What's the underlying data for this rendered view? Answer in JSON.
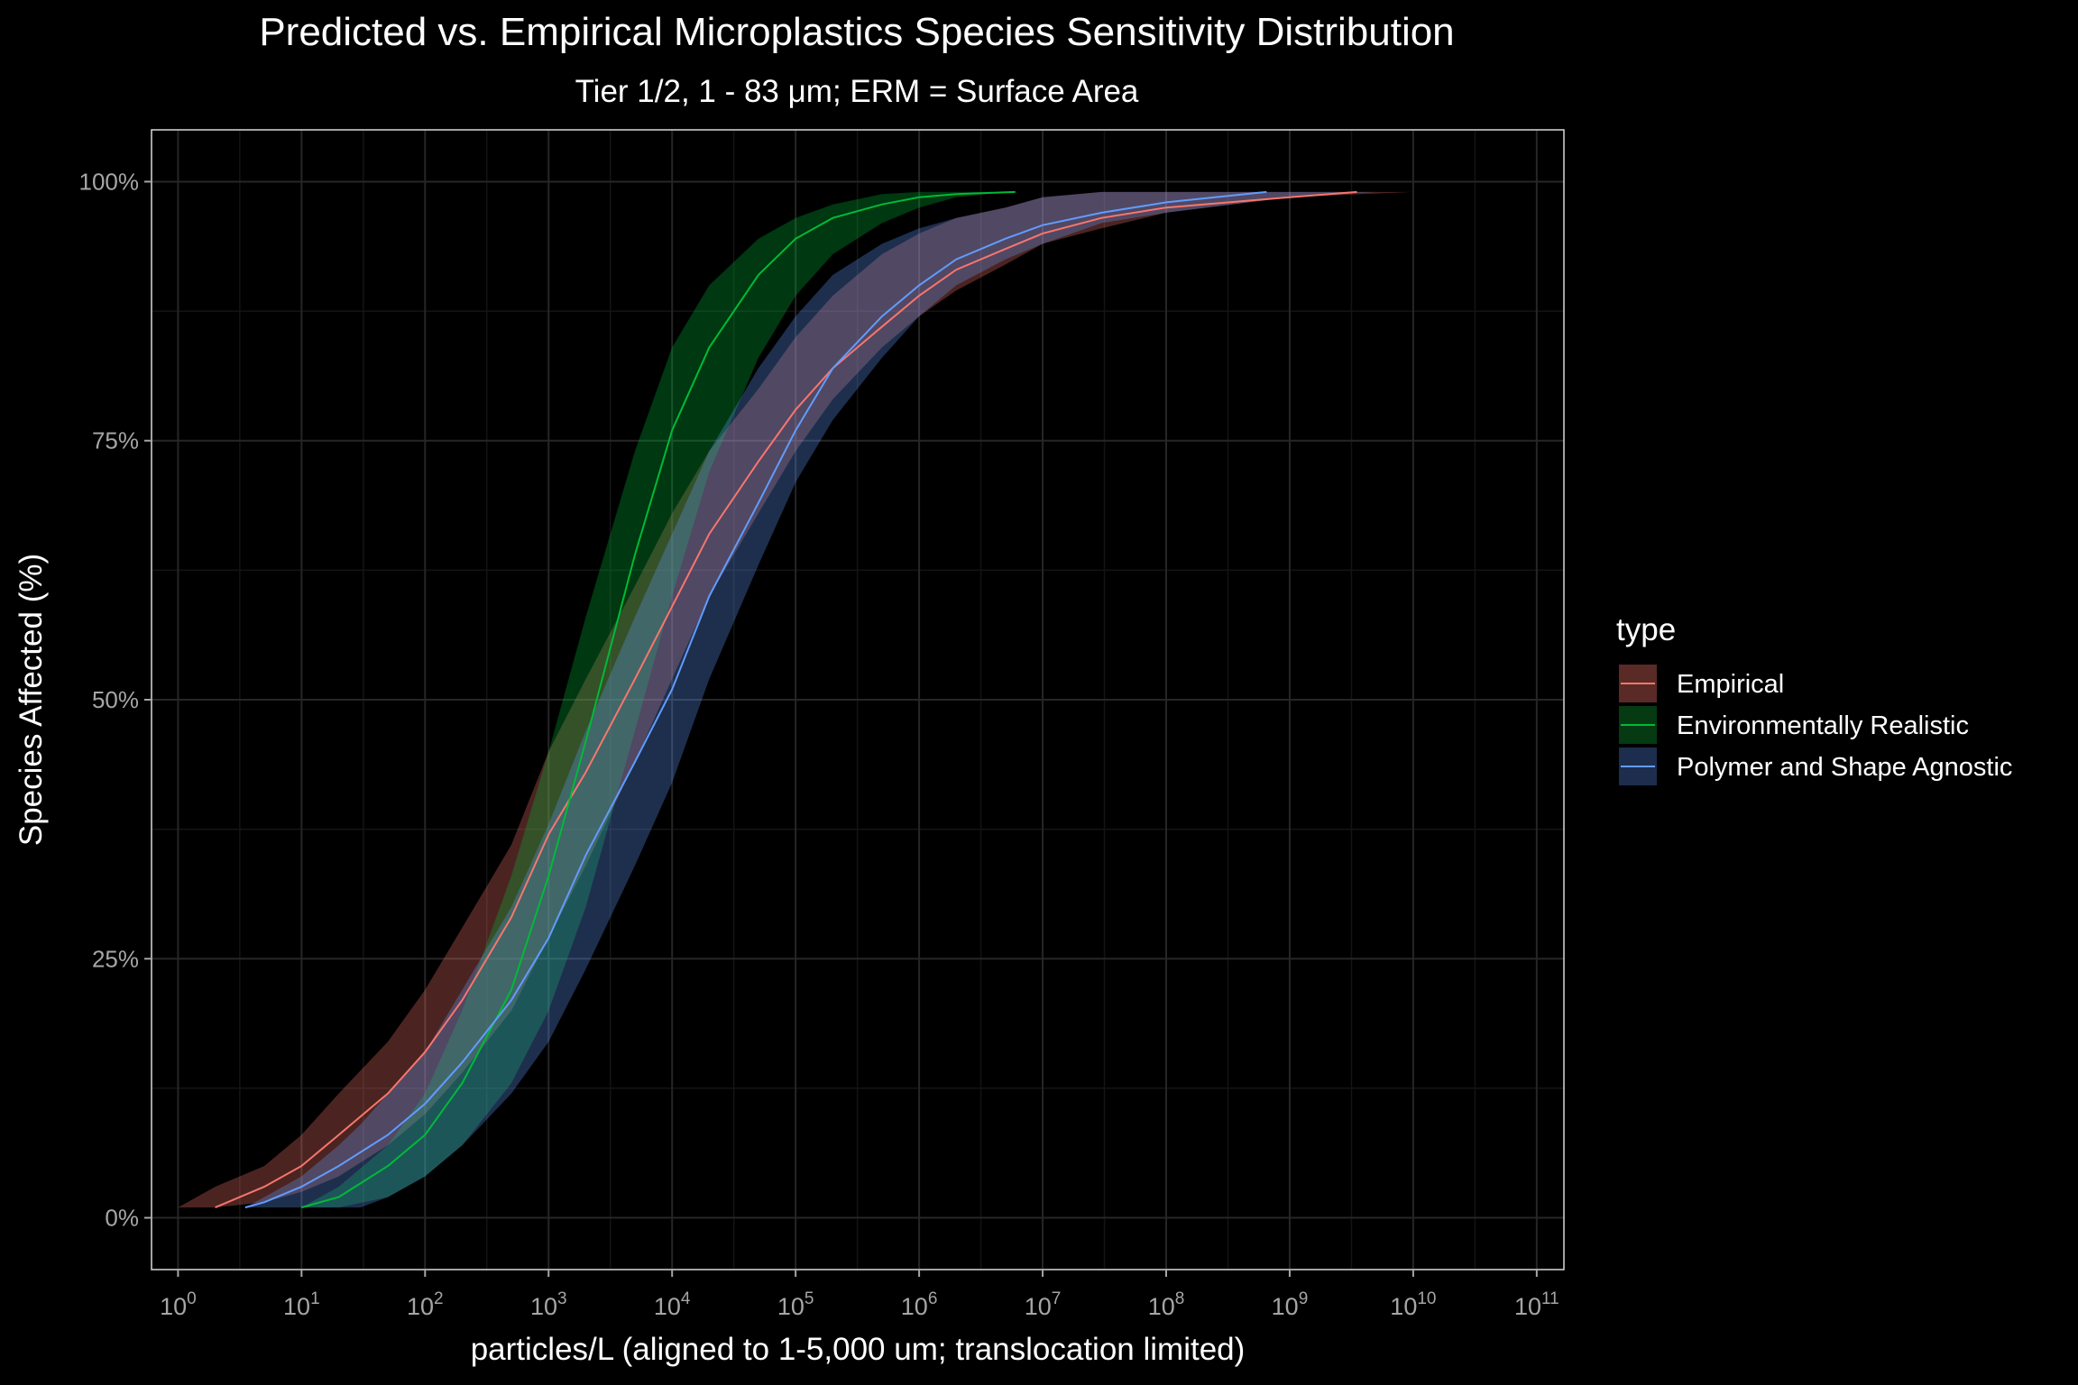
{
  "chart_data": {
    "type": "area",
    "title": "Predicted vs. Empirical Microplastics Species Sensitivity Distribution",
    "subtitle": "Tier 1/2, 1 - 83 μm; ERM = Surface Area",
    "xlabel": "particles/L (aligned to 1-5,000 um; translocation limited)",
    "ylabel": "Species Affected (%)",
    "x_scale": "log10",
    "xlim": [
      0.61,
      166000000000
    ],
    "ylim": [
      -0.05,
      1.05
    ],
    "x_ticks": [
      {
        "base": "10",
        "exp": "0"
      },
      {
        "base": "10",
        "exp": "1"
      },
      {
        "base": "10",
        "exp": "2"
      },
      {
        "base": "10",
        "exp": "3"
      },
      {
        "base": "10",
        "exp": "4"
      },
      {
        "base": "10",
        "exp": "5"
      },
      {
        "base": "10",
        "exp": "6"
      },
      {
        "base": "10",
        "exp": "7"
      },
      {
        "base": "10",
        "exp": "8"
      },
      {
        "base": "10",
        "exp": "9"
      },
      {
        "base": "10",
        "exp": "10"
      },
      {
        "base": "10",
        "exp": "11"
      }
    ],
    "y_ticks": [
      "0%",
      "25%",
      "50%",
      "75%",
      "100%"
    ],
    "grid": true,
    "legend": {
      "title": "type",
      "placement": "right"
    },
    "series": [
      {
        "name": "Empirical",
        "color": "#F8766D",
        "fill": "#5a2a27",
        "x": [
          2,
          5,
          10,
          20,
          50,
          100,
          200,
          500,
          1000,
          2000,
          5000,
          10000,
          20000,
          50000,
          100000,
          200000,
          500000,
          1000000,
          2000000,
          5000000,
          10000000,
          30000000,
          100000000,
          1000000000,
          3500000000
        ],
        "y": [
          0.01,
          0.03,
          0.05,
          0.08,
          0.12,
          0.16,
          0.21,
          0.29,
          0.37,
          0.43,
          0.52,
          0.59,
          0.66,
          0.73,
          0.78,
          0.82,
          0.86,
          0.89,
          0.915,
          0.935,
          0.95,
          0.965,
          0.975,
          0.985,
          0.99
        ],
        "x_band": [
          1,
          2,
          5,
          10,
          20,
          50,
          100,
          200,
          500,
          1000,
          2000,
          5000,
          10000,
          20000,
          50000,
          100000,
          200000,
          500000,
          1000000,
          2000000,
          5000000,
          10000000,
          30000000,
          100000000,
          1000000000,
          10000000000,
          90000000000
        ],
        "lower": [
          0.01,
          0.01,
          0.015,
          0.025,
          0.04,
          0.07,
          0.1,
          0.14,
          0.2,
          0.27,
          0.34,
          0.44,
          0.52,
          0.6,
          0.68,
          0.74,
          0.79,
          0.84,
          0.87,
          0.895,
          0.92,
          0.94,
          0.955,
          0.97,
          0.985,
          0.99,
          0.99
        ],
        "upper": [
          0.01,
          0.03,
          0.05,
          0.08,
          0.12,
          0.17,
          0.22,
          0.28,
          0.36,
          0.45,
          0.52,
          0.61,
          0.68,
          0.74,
          0.8,
          0.85,
          0.89,
          0.93,
          0.95,
          0.965,
          0.975,
          0.985,
          0.99,
          0.99,
          0.99,
          0.99,
          0.99
        ]
      },
      {
        "name": "Environmentally Realistic",
        "color": "#00BA38",
        "fill": "#053a12",
        "x": [
          10,
          20,
          50,
          100,
          200,
          500,
          1000,
          2000,
          5000,
          10000,
          20000,
          50000,
          100000,
          200000,
          500000,
          1000000,
          2000000,
          6000000
        ],
        "y": [
          0.01,
          0.02,
          0.05,
          0.08,
          0.13,
          0.22,
          0.33,
          0.46,
          0.64,
          0.76,
          0.84,
          0.91,
          0.945,
          0.965,
          0.978,
          0.985,
          0.988,
          0.99
        ],
        "x_band": [
          10,
          20,
          50,
          100,
          200,
          500,
          1000,
          2000,
          5000,
          10000,
          20000,
          50000,
          100000,
          200000,
          500000,
          1000000,
          2000000,
          5000000,
          20000000
        ],
        "lower": [
          0.01,
          0.01,
          0.02,
          0.04,
          0.07,
          0.13,
          0.2,
          0.3,
          0.47,
          0.6,
          0.72,
          0.83,
          0.89,
          0.93,
          0.96,
          0.975,
          0.985,
          0.99,
          0.99
        ],
        "upper": [
          0.01,
          0.03,
          0.07,
          0.12,
          0.2,
          0.33,
          0.45,
          0.58,
          0.74,
          0.84,
          0.9,
          0.945,
          0.965,
          0.978,
          0.988,
          0.99,
          0.99,
          0.99,
          0.99
        ]
      },
      {
        "name": "Polymer and Shape Agnostic",
        "color": "#619CFF",
        "fill": "#1d2d4d",
        "x": [
          3.5,
          5,
          10,
          20,
          50,
          100,
          200,
          500,
          1000,
          2000,
          5000,
          10000,
          20000,
          50000,
          100000,
          200000,
          500000,
          1000000,
          2000000,
          5000000,
          10000000,
          30000000,
          100000000,
          650000000
        ],
        "y": [
          0.01,
          0.015,
          0.03,
          0.05,
          0.08,
          0.11,
          0.15,
          0.21,
          0.27,
          0.35,
          0.44,
          0.51,
          0.6,
          0.69,
          0.76,
          0.82,
          0.87,
          0.9,
          0.925,
          0.945,
          0.958,
          0.97,
          0.98,
          0.99
        ],
        "x_band": [
          3.5,
          5,
          10,
          20,
          30,
          50,
          100,
          200,
          500,
          1000,
          2000,
          5000,
          10000,
          20000,
          50000,
          100000,
          200000,
          500000,
          1000000,
          2000000,
          5000000,
          10000000,
          30000000,
          100000000,
          1000000000,
          5000000000
        ],
        "lower": [
          0.01,
          0.01,
          0.01,
          0.01,
          0.01,
          0.02,
          0.04,
          0.07,
          0.12,
          0.17,
          0.24,
          0.34,
          0.42,
          0.52,
          0.63,
          0.71,
          0.77,
          0.83,
          0.87,
          0.9,
          0.925,
          0.94,
          0.96,
          0.97,
          0.985,
          0.99
        ],
        "upper": [
          0.01,
          0.02,
          0.04,
          0.07,
          0.09,
          0.12,
          0.16,
          0.22,
          0.3,
          0.38,
          0.47,
          0.58,
          0.66,
          0.74,
          0.82,
          0.87,
          0.91,
          0.94,
          0.955,
          0.965,
          0.975,
          0.985,
          0.99,
          0.99,
          0.99,
          0.99
        ]
      }
    ]
  }
}
